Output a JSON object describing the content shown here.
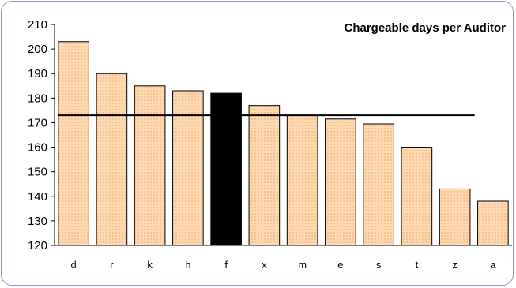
{
  "chart_data": {
    "type": "bar",
    "title": "Chargeable days per Auditor",
    "categories": [
      "d",
      "r",
      "k",
      "h",
      "f",
      "x",
      "m",
      "e",
      "s",
      "t",
      "z",
      "a"
    ],
    "values": [
      203,
      190,
      185,
      183,
      182,
      177,
      173,
      171.5,
      169.5,
      160,
      143,
      138
    ],
    "highlight_category": "f",
    "reference_line_value": 173,
    "ylim": [
      120,
      210
    ],
    "yticks": [
      120,
      130,
      140,
      150,
      160,
      170,
      180,
      190,
      200,
      210
    ],
    "xlabel": "",
    "ylabel": "",
    "grid": false,
    "colors": {
      "bar_fill": "#fdd8b0",
      "bar_pattern_dot": "#f4b27a",
      "highlight_fill": "#000000",
      "bar_stroke": "#000000",
      "reference_line": "#000000",
      "frame_border": "#9a8fc8"
    }
  }
}
